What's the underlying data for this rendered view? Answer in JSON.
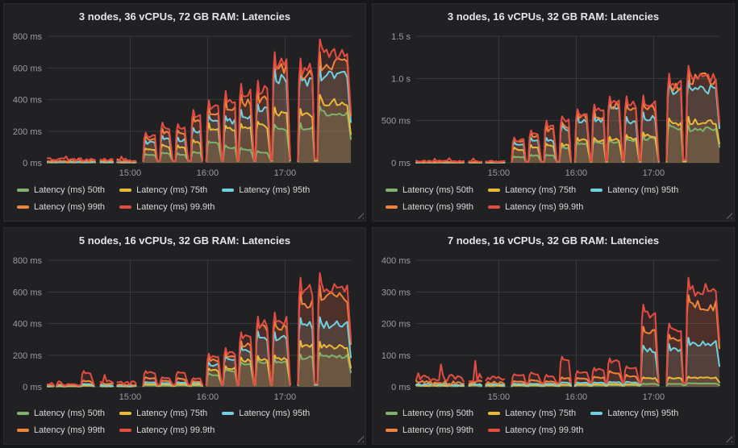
{
  "theme": {
    "page_bg": "#161719",
    "panel_bg": "#212124",
    "grid_color": "#37393c",
    "tick_color": "#9a9ca0",
    "title_color": "#e3e4e6",
    "legend_text_color": "#d8d9da"
  },
  "chart_data": [
    {
      "type": "area",
      "title": "3 nodes, 36 vCPUs, 72 GB RAM: Latencies",
      "xlabel": "",
      "ylabel": "",
      "legend_position": "bottom",
      "grid": true,
      "ylim": [
        0,
        800
      ],
      "x_range": [
        836,
        1071
      ],
      "y_ticks": [
        {
          "v": 0,
          "label": "0 ms"
        },
        {
          "v": 200,
          "label": "200 ms"
        },
        {
          "v": 400,
          "label": "400 ms"
        },
        {
          "v": 600,
          "label": "600 ms"
        },
        {
          "v": 800,
          "label": "800 ms"
        }
      ],
      "x_ticks": [
        {
          "t": 900,
          "label": "15:00"
        },
        {
          "t": 960,
          "label": "16:00"
        },
        {
          "t": 1020,
          "label": "17:00"
        }
      ],
      "series": [
        {
          "name": "Latency (ms) 50th",
          "color": "#7EB26D"
        },
        {
          "name": "Latency (ms) 75th",
          "color": "#EAB839"
        },
        {
          "name": "Latency (ms) 95th",
          "color": "#6ED0E0"
        },
        {
          "name": "Latency (ms) 99th",
          "color": "#EF843C"
        },
        {
          "name": "Latency (ms) 99.9th",
          "color": "#E24D42"
        }
      ],
      "noise": [
        {
          "t": [
            836,
            874
          ],
          "p999": 22
        },
        {
          "t": [
            877,
            887
          ],
          "p999": 24
        },
        {
          "t": [
            890,
            906
          ],
          "p999": 20
        }
      ],
      "bursts": [
        {
          "t": [
            910,
            921
          ],
          "p": [
            55,
            90,
            140,
            165,
            190
          ]
        },
        {
          "t": [
            923,
            933
          ],
          "p": [
            65,
            115,
            170,
            215,
            255
          ]
        },
        {
          "t": [
            935,
            945
          ],
          "p": [
            60,
            110,
            160,
            205,
            245
          ]
        },
        {
          "t": [
            947,
            956
          ],
          "p": [
            70,
            145,
            220,
            290,
            335
          ],
          "gap_after": true
        },
        {
          "t": [
            959,
            971
          ],
          "p": [
            135,
            250,
            300,
            345,
            395
          ]
        },
        {
          "t": [
            972,
            983
          ],
          "p": [
            110,
            235,
            295,
            400,
            455
          ]
        },
        {
          "t": [
            984,
            996
          ],
          "p": [
            95,
            245,
            335,
            430,
            500
          ]
        },
        {
          "t": [
            997,
            1009
          ],
          "p": [
            75,
            260,
            370,
            450,
            520
          ]
        },
        {
          "t": [
            1010,
            1024
          ],
          "p": [
            240,
            350,
            600,
            665,
            700
          ],
          "gap_after": true
        },
        {
          "t": [
            1030,
            1043
          ],
          "p": [
            250,
            340,
            575,
            620,
            660
          ]
        },
        {
          "t": [
            1045,
            1071
          ],
          "p": [
            355,
            430,
            610,
            700,
            780
          ],
          "gap_after": true
        }
      ]
    },
    {
      "type": "area",
      "title": "3 nodes, 16 vCPUs, 32 GB RAM: Latencies",
      "xlabel": "",
      "ylabel": "",
      "legend_position": "bottom",
      "grid": true,
      "ylim": [
        0,
        1500
      ],
      "x_range": [
        836,
        1071
      ],
      "y_ticks": [
        {
          "v": 0,
          "label": "0 ms"
        },
        {
          "v": 500,
          "label": "500 ms"
        },
        {
          "v": 1000,
          "label": "1.0 s"
        },
        {
          "v": 1500,
          "label": "1.5 s"
        }
      ],
      "x_ticks": [
        {
          "t": 900,
          "label": "15:00"
        },
        {
          "t": 960,
          "label": "16:00"
        },
        {
          "t": 1020,
          "label": "17:00"
        }
      ],
      "series": [
        {
          "name": "Latency (ms) 50th",
          "color": "#7EB26D"
        },
        {
          "name": "Latency (ms) 75th",
          "color": "#EAB839"
        },
        {
          "name": "Latency (ms) 95th",
          "color": "#6ED0E0"
        },
        {
          "name": "Latency (ms) 99th",
          "color": "#EF843C"
        },
        {
          "name": "Latency (ms) 99.9th",
          "color": "#E24D42"
        }
      ],
      "noise": [
        {
          "t": [
            836,
            874
          ],
          "p999": 20
        },
        {
          "t": [
            877,
            887
          ],
          "p999": 22
        },
        {
          "t": [
            890,
            906
          ],
          "p999": 18
        }
      ],
      "bursts": [
        {
          "t": [
            910,
            921
          ],
          "p": [
            75,
            180,
            245,
            280,
            300
          ]
        },
        {
          "t": [
            923,
            933
          ],
          "p": [
            95,
            210,
            295,
            360,
            385
          ]
        },
        {
          "t": [
            935,
            945
          ],
          "p": [
            95,
            225,
            295,
            430,
            500
          ]
        },
        {
          "t": [
            947,
            956
          ],
          "p": [
            195,
            230,
            445,
            480,
            550
          ],
          "gap_after": true
        },
        {
          "t": [
            959,
            971
          ],
          "p": [
            245,
            295,
            575,
            610,
            635
          ]
        },
        {
          "t": [
            972,
            983
          ],
          "p": [
            260,
            295,
            575,
            625,
            690
          ]
        },
        {
          "t": [
            984,
            996
          ],
          "p": [
            275,
            310,
            725,
            760,
            785
          ]
        },
        {
          "t": [
            997,
            1009
          ],
          "p": [
            295,
            330,
            545,
            710,
            790
          ]
        },
        {
          "t": [
            1010,
            1024
          ],
          "p": [
            320,
            360,
            600,
            730,
            800
          ],
          "gap_after": true
        },
        {
          "t": [
            1030,
            1043
          ],
          "p": [
            460,
            525,
            940,
            1010,
            1060
          ]
        },
        {
          "t": [
            1045,
            1071
          ],
          "p": [
            445,
            545,
            975,
            1120,
            1150
          ],
          "gap_after": true
        }
      ]
    },
    {
      "type": "area",
      "title": "5 nodes, 16 vCPUs, 32 GB RAM: Latencies",
      "xlabel": "",
      "ylabel": "",
      "legend_position": "bottom",
      "grid": true,
      "ylim": [
        0,
        800
      ],
      "x_range": [
        836,
        1071
      ],
      "y_ticks": [
        {
          "v": 0,
          "label": "0 ms"
        },
        {
          "v": 200,
          "label": "200 ms"
        },
        {
          "v": 400,
          "label": "400 ms"
        },
        {
          "v": 600,
          "label": "600 ms"
        },
        {
          "v": 800,
          "label": "800 ms"
        }
      ],
      "x_ticks": [
        {
          "t": 900,
          "label": "15:00"
        },
        {
          "t": 960,
          "label": "16:00"
        },
        {
          "t": 1020,
          "label": "17:00"
        }
      ],
      "series": [
        {
          "name": "Latency (ms) 50th",
          "color": "#7EB26D"
        },
        {
          "name": "Latency (ms) 75th",
          "color": "#EAB839"
        },
        {
          "name": "Latency (ms) 95th",
          "color": "#6ED0E0"
        },
        {
          "name": "Latency (ms) 99th",
          "color": "#EF843C"
        },
        {
          "name": "Latency (ms) 99.9th",
          "color": "#E24D42"
        }
      ],
      "noise": [
        {
          "t": [
            836,
            842
          ],
          "p999": 18
        },
        {
          "t": [
            877,
            887
          ],
          "p999": 30
        },
        {
          "t": [
            890,
            906
          ],
          "p999": 25
        }
      ],
      "bursts": [
        {
          "t": [
            843,
            848
          ],
          "p": [
            3,
            4,
            8,
            15,
            35
          ]
        },
        {
          "t": [
            850,
            860
          ],
          "p": [
            3,
            4,
            7,
            10,
            18
          ]
        },
        {
          "t": [
            862,
            872
          ],
          "p": [
            6,
            10,
            18,
            40,
            100
          ],
          "gap_after": true
        },
        {
          "t": [
            910,
            921
          ],
          "p": [
            10,
            18,
            30,
            60,
            100
          ]
        },
        {
          "t": [
            923,
            933
          ],
          "p": [
            8,
            15,
            25,
            40,
            60
          ]
        },
        {
          "t": [
            935,
            945
          ],
          "p": [
            10,
            18,
            30,
            55,
            95
          ]
        },
        {
          "t": [
            947,
            956
          ],
          "p": [
            8,
            15,
            25,
            35,
            55
          ],
          "gap_after": true
        },
        {
          "t": [
            959,
            971
          ],
          "p": [
            85,
            115,
            155,
            185,
            210
          ]
        },
        {
          "t": [
            972,
            983
          ],
          "p": [
            110,
            130,
            190,
            220,
            245
          ]
        },
        {
          "t": [
            984,
            996
          ],
          "p": [
            155,
            185,
            255,
            290,
            345
          ]
        },
        {
          "t": [
            997,
            1009
          ],
          "p": [
            180,
            195,
            350,
            420,
            445
          ]
        },
        {
          "t": [
            1010,
            1024
          ],
          "p": [
            175,
            200,
            345,
            415,
            470
          ],
          "gap_after": true
        },
        {
          "t": [
            1030,
            1043
          ],
          "p": [
            205,
            290,
            435,
            600,
            690
          ]
        },
        {
          "t": [
            1045,
            1071
          ],
          "p": [
            215,
            285,
            440,
            640,
            720
          ],
          "gap_after": true
        }
      ]
    },
    {
      "type": "area",
      "title": "7 nodes, 16 vCPUs, 32 GB RAM: Latencies",
      "xlabel": "",
      "ylabel": "",
      "legend_position": "bottom",
      "grid": true,
      "ylim": [
        0,
        400
      ],
      "x_range": [
        836,
        1071
      ],
      "y_ticks": [
        {
          "v": 0,
          "label": "0 ms"
        },
        {
          "v": 100,
          "label": "100 ms"
        },
        {
          "v": 200,
          "label": "200 ms"
        },
        {
          "v": 300,
          "label": "300 ms"
        },
        {
          "v": 400,
          "label": "400 ms"
        }
      ],
      "x_ticks": [
        {
          "t": 900,
          "label": "15:00"
        },
        {
          "t": 960,
          "label": "16:00"
        },
        {
          "t": 1020,
          "label": "17:00"
        }
      ],
      "series": [
        {
          "name": "Latency (ms) 50th",
          "color": "#7EB26D"
        },
        {
          "name": "Latency (ms) 75th",
          "color": "#EAB839"
        },
        {
          "name": "Latency (ms) 95th",
          "color": "#6ED0E0"
        },
        {
          "name": "Latency (ms) 99th",
          "color": "#EF843C"
        },
        {
          "name": "Latency (ms) 99.9th",
          "color": "#E24D42"
        }
      ],
      "noise": [
        {
          "t": [
            836,
            874
          ],
          "p999": 30
        },
        {
          "t": [
            877,
            887
          ],
          "p999": 32
        },
        {
          "t": [
            890,
            906
          ],
          "p999": 28
        }
      ],
      "bursts": [
        {
          "t": [
            910,
            921
          ],
          "p": [
            4,
            6,
            10,
            18,
            40
          ]
        },
        {
          "t": [
            923,
            933
          ],
          "p": [
            4,
            6,
            10,
            22,
            45
          ]
        },
        {
          "t": [
            935,
            945
          ],
          "p": [
            4,
            6,
            10,
            18,
            38
          ]
        },
        {
          "t": [
            947,
            956
          ],
          "p": [
            5,
            7,
            14,
            30,
            95
          ],
          "gap_after": true
        },
        {
          "t": [
            959,
            971
          ],
          "p": [
            5,
            8,
            14,
            28,
            50
          ]
        },
        {
          "t": [
            972,
            983
          ],
          "p": [
            5,
            8,
            14,
            32,
            60
          ]
        },
        {
          "t": [
            984,
            996
          ],
          "p": [
            6,
            9,
            16,
            50,
            90
          ]
        },
        {
          "t": [
            997,
            1009
          ],
          "p": [
            6,
            9,
            16,
            38,
            65
          ]
        },
        {
          "t": [
            1010,
            1024
          ],
          "p": [
            10,
            30,
            130,
            190,
            260
          ],
          "gap_after": true
        },
        {
          "t": [
            1030,
            1043
          ],
          "p": [
            10,
            30,
            135,
            165,
            200
          ]
        },
        {
          "t": [
            1045,
            1071
          ],
          "p": [
            12,
            32,
            155,
            290,
            345
          ],
          "gap_after": true
        }
      ]
    }
  ]
}
